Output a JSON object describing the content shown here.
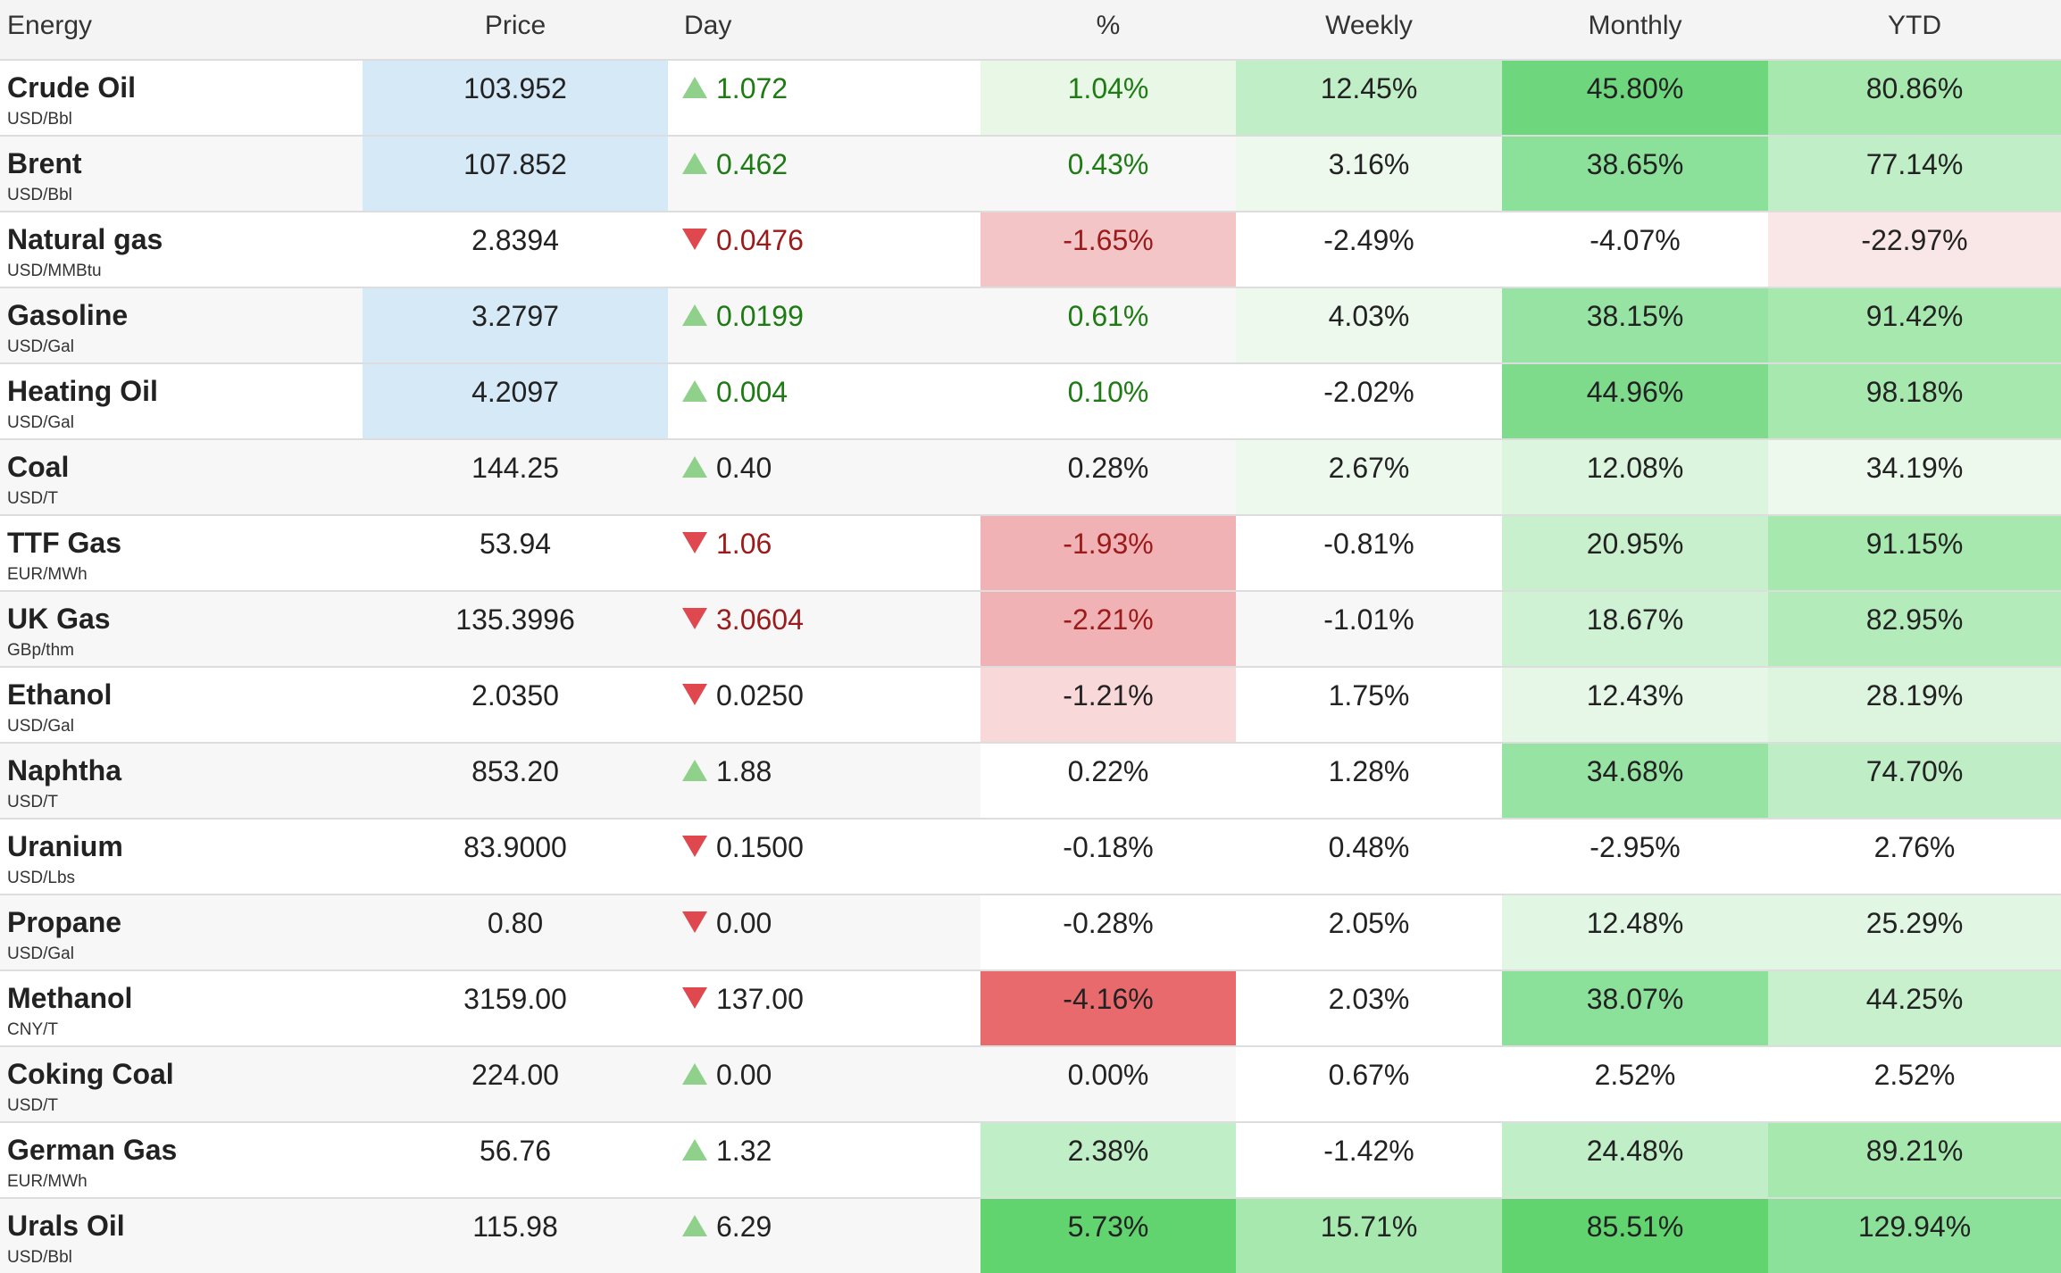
{
  "headers": [
    "Energy",
    "Price",
    "Day",
    "%",
    "Weekly",
    "Monthly",
    "YTD"
  ],
  "colors": {
    "price_highlight": "#d5e9f6",
    "up_text": "#1e7b14",
    "down_text": "#9b1b1b",
    "up_arrow": "#8fd18a",
    "down_arrow": "#e0484f"
  },
  "rows": [
    {
      "name": "Crude Oil",
      "unit": "USD/Bbl",
      "price": "103.952",
      "price_highlight": true,
      "direction": "up",
      "day": "1.072",
      "pct": "1.04%",
      "weekly": "12.45%",
      "monthly": "45.80%",
      "ytd": "80.86%",
      "pct_color": "#e9f8e6",
      "weekly_color": "#c0eec6",
      "monthly_color": "#6ed77d",
      "ytd_color": "#a6e8ae",
      "pct_text": "up"
    },
    {
      "name": "Brent",
      "unit": "USD/Bbl",
      "price": "107.852",
      "price_highlight": true,
      "direction": "up",
      "day": "0.462",
      "pct": "0.43%",
      "weekly": "3.16%",
      "monthly": "38.65%",
      "ytd": "77.14%",
      "pct_color": "",
      "weekly_color": "#edf9ec",
      "monthly_color": "#8ce19a",
      "ytd_color": "#c0eec6",
      "pct_text": "up"
    },
    {
      "name": "Natural gas",
      "unit": "USD/MMBtu",
      "price": "2.8394",
      "price_highlight": false,
      "direction": "down",
      "day": "0.0476",
      "pct": "-1.65%",
      "weekly": "-2.49%",
      "monthly": "-4.07%",
      "ytd": "-22.97%",
      "pct_color": "#f4c5c7",
      "weekly_color": "",
      "monthly_color": "",
      "ytd_color": "#f9e7e7",
      "pct_text": "down"
    },
    {
      "name": "Gasoline",
      "unit": "USD/Gal",
      "price": "3.2797",
      "price_highlight": true,
      "direction": "up",
      "day": "0.0199",
      "pct": "0.61%",
      "weekly": "4.03%",
      "monthly": "38.15%",
      "ytd": "91.42%",
      "pct_color": "",
      "weekly_color": "#edf9ec",
      "monthly_color": "#97e3a3",
      "ytd_color": "#a6e8ae",
      "pct_text": "up"
    },
    {
      "name": "Heating Oil",
      "unit": "USD/Gal",
      "price": "4.2097",
      "price_highlight": true,
      "direction": "up",
      "day": "0.004",
      "pct": "0.10%",
      "weekly": "-2.02%",
      "monthly": "44.96%",
      "ytd": "98.18%",
      "pct_color": "",
      "weekly_color": "",
      "monthly_color": "#7ddb8b",
      "ytd_color": "#a6e8ae",
      "pct_text": "up"
    },
    {
      "name": "Coal",
      "unit": "USD/T",
      "price": "144.25",
      "price_highlight": false,
      "direction": "up",
      "day": "0.40",
      "pct": "0.28%",
      "weekly": "2.67%",
      "monthly": "12.08%",
      "ytd": "34.19%",
      "pct_color": "",
      "weekly_color": "#edf9ec",
      "monthly_color": "#dcf5de",
      "ytd_color": "#edf9ec",
      "pct_text": "flat"
    },
    {
      "name": "TTF Gas",
      "unit": "EUR/MWh",
      "price": "53.94",
      "price_highlight": false,
      "direction": "down",
      "day": "1.06",
      "pct": "-1.93%",
      "weekly": "-0.81%",
      "monthly": "20.95%",
      "ytd": "91.15%",
      "pct_color": "#f1b2b5",
      "weekly_color": "",
      "monthly_color": "#c8f0cd",
      "ytd_color": "#a6e8ae",
      "pct_text": "down"
    },
    {
      "name": "UK Gas",
      "unit": "GBp/thm",
      "price": "135.3996",
      "price_highlight": false,
      "direction": "down",
      "day": "3.0604",
      "pct": "-2.21%",
      "weekly": "-1.01%",
      "monthly": "18.67%",
      "ytd": "82.95%",
      "pct_color": "#f1b2b5",
      "weekly_color": "",
      "monthly_color": "#d0f2d4",
      "ytd_color": "#b3ebba",
      "pct_text": "down"
    },
    {
      "name": "Ethanol",
      "unit": "USD/Gal",
      "price": "2.0350",
      "price_highlight": false,
      "direction": "down",
      "day": "0.0250",
      "pct": "-1.21%",
      "weekly": "1.75%",
      "monthly": "12.43%",
      "ytd": "28.19%",
      "pct_color": "#f8d8d9",
      "weekly_color": "",
      "monthly_color": "#e6f7e7",
      "ytd_color": "#ddf5df",
      "pct_text": "flat"
    },
    {
      "name": "Naphtha",
      "unit": "USD/T",
      "price": "853.20",
      "price_highlight": false,
      "direction": "up",
      "day": "1.88",
      "pct": "0.22%",
      "weekly": "1.28%",
      "monthly": "34.68%",
      "ytd": "74.70%",
      "pct_color": "#ffffff",
      "weekly_color": "#ffffff",
      "monthly_color": "#97e3a3",
      "ytd_color": "#bfedc5",
      "pct_text": "flat"
    },
    {
      "name": "Uranium",
      "unit": "USD/Lbs",
      "price": "83.9000",
      "price_highlight": false,
      "direction": "down",
      "day": "0.1500",
      "pct": "-0.18%",
      "weekly": "0.48%",
      "monthly": "-2.95%",
      "ytd": "2.76%",
      "pct_color": "",
      "weekly_color": "",
      "monthly_color": "",
      "ytd_color": "",
      "pct_text": "flat"
    },
    {
      "name": "Propane",
      "unit": "USD/Gal",
      "price": "0.80",
      "price_highlight": false,
      "direction": "down",
      "day": "0.00",
      "pct": "-0.28%",
      "weekly": "2.05%",
      "monthly": "12.48%",
      "ytd": "25.29%",
      "pct_color": "#ffffff",
      "weekly_color": "#ffffff",
      "monthly_color": "#e2f6e4",
      "ytd_color": "#e2f6e4",
      "pct_text": "flat"
    },
    {
      "name": "Methanol",
      "unit": "CNY/T",
      "price": "3159.00",
      "price_highlight": false,
      "direction": "down",
      "day": "137.00",
      "pct": "-4.16%",
      "weekly": "2.03%",
      "monthly": "38.07%",
      "ytd": "44.25%",
      "pct_color": "#e96a6d",
      "weekly_color": "",
      "monthly_color": "#8ce19a",
      "ytd_color": "#c8f0cd",
      "pct_text": "flat"
    },
    {
      "name": "Coking Coal",
      "unit": "USD/T",
      "price": "224.00",
      "price_highlight": false,
      "direction": "up",
      "day": "0.00",
      "pct": "0.00%",
      "weekly": "0.67%",
      "monthly": "2.52%",
      "ytd": "2.52%",
      "pct_color": "",
      "weekly_color": "#ffffff",
      "monthly_color": "#ffffff",
      "ytd_color": "#ffffff",
      "pct_text": "flat"
    },
    {
      "name": "German Gas",
      "unit": "EUR/MWh",
      "price": "56.76",
      "price_highlight": false,
      "direction": "up",
      "day": "1.32",
      "pct": "2.38%",
      "weekly": "-1.42%",
      "monthly": "24.48%",
      "ytd": "89.21%",
      "pct_color": "#c0eec6",
      "weekly_color": "",
      "monthly_color": "#c0eec6",
      "ytd_color": "#a6e8ae",
      "pct_text": "flat"
    },
    {
      "name": "Urals Oil",
      "unit": "USD/Bbl",
      "price": "115.98",
      "price_highlight": false,
      "direction": "up",
      "day": "6.29",
      "pct": "5.73%",
      "weekly": "15.71%",
      "monthly": "85.51%",
      "ytd": "129.94%",
      "pct_color": "#62d46f",
      "weekly_color": "#a6e8ae",
      "monthly_color": "#62d46f",
      "ytd_color": "#8ce19a",
      "pct_text": "flat"
    }
  ]
}
